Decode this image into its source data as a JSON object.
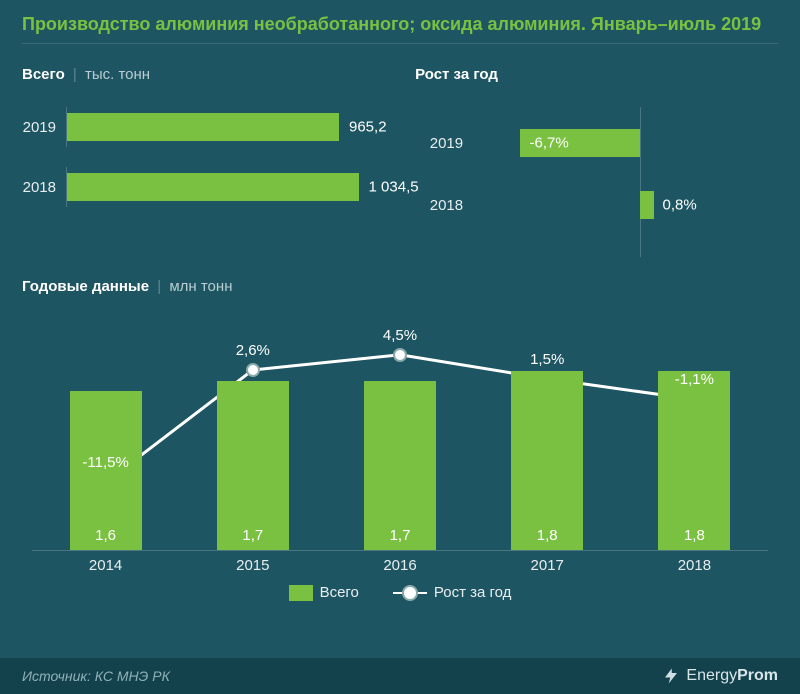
{
  "colors": {
    "background": "#1e5562",
    "accent": "#7ac142",
    "line": "#ffffff",
    "marker_border": "#88aaaa",
    "axis": "#4a7681",
    "text": "#ffffff",
    "muted": "#b9cdd2",
    "footer_bg": "#13424d",
    "footer_text": "#8fb0b7"
  },
  "title": "Производство алюминия необработанного; оксида алюминия. Январь–июль 2019",
  "total_chart": {
    "type": "bar-horizontal",
    "title_main": "Всего",
    "title_unit": "тыс. тонн",
    "xlim": [
      0,
      1100
    ],
    "bars": [
      {
        "year": "2019",
        "value": 965.2,
        "label": "965,2"
      },
      {
        "year": "2018",
        "value": 1034.5,
        "label": "1 034,5"
      }
    ]
  },
  "growth_chart": {
    "type": "bar-tornado",
    "title_main": "Рост за год",
    "baseline": 0,
    "range": [
      -8,
      4
    ],
    "bars": [
      {
        "year": "2019",
        "value": -6.7,
        "label": "-6,7%"
      },
      {
        "year": "2018",
        "value": 0.8,
        "label": "0,8%"
      }
    ]
  },
  "annual_chart": {
    "type": "bar+line",
    "title_main": "Годовые данные",
    "title_unit": "млн тонн",
    "categories": [
      "2014",
      "2015",
      "2016",
      "2017",
      "2018"
    ],
    "bar_values": [
      1.6,
      1.7,
      1.7,
      1.8,
      1.8
    ],
    "bar_labels": [
      "1,6",
      "1,7",
      "1,7",
      "1,8",
      "1,8"
    ],
    "bar_ylim": [
      0,
      2.4
    ],
    "bar_color": "#7ac142",
    "line_values": [
      -11.5,
      2.6,
      4.5,
      1.5,
      -1.1
    ],
    "line_labels": [
      "-11,5%",
      "2,6%",
      "4,5%",
      "1,5%",
      "-1,1%"
    ],
    "line_ylim": [
      -20,
      10
    ],
    "line_color": "#ffffff",
    "legend": {
      "bar": "Всего",
      "line": "Рост за год"
    }
  },
  "footer": {
    "source": "Источник: КС МНЭ РК",
    "brand_light": "Energy",
    "brand_bold": "Prom"
  }
}
